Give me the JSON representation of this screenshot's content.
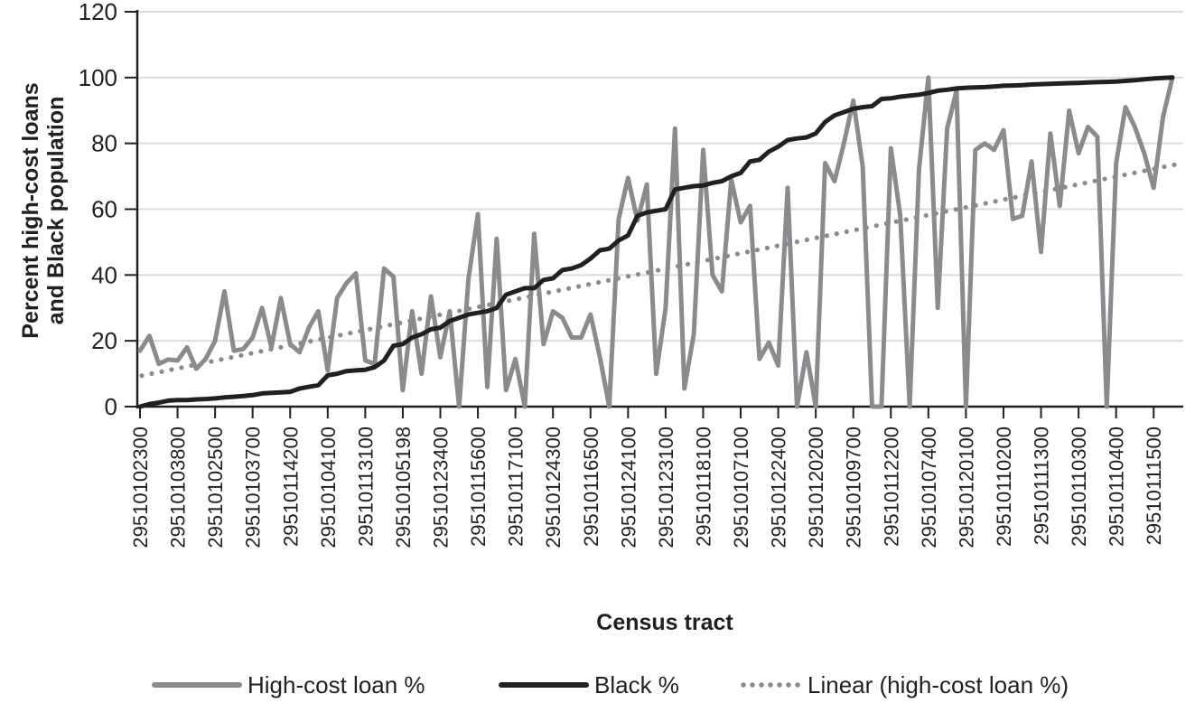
{
  "chart_data": {
    "type": "line",
    "title": "",
    "xlabel": "Census tract",
    "ylabel": "Percent high-cost loans and Black population",
    "ylim": [
      0,
      120
    ],
    "yticks": [
      0,
      20,
      40,
      60,
      80,
      100,
      120
    ],
    "grid": true,
    "legend_position": "bottom",
    "x_tick_labels": [
      "29510102300",
      "29510103800",
      "29510102500",
      "29510103700",
      "29510114200",
      "29510104100",
      "29510113100",
      "29510105198",
      "29510123400",
      "29510115600",
      "29510117100",
      "29510124300",
      "29510116500",
      "29510124100",
      "29510123100",
      "29510118100",
      "29510107100",
      "29510122400",
      "29510120200",
      "29510109700",
      "29510112200",
      "29510107400",
      "29510120100",
      "29510110200",
      "29510111300",
      "29510110300",
      "29510110400",
      "29510111500"
    ],
    "x_tick_every": 4,
    "series": [
      {
        "name": "High-cost loan %",
        "color": "#8a8b8e",
        "style": "solid",
        "values": [
          17,
          21.5,
          13,
          14.3,
          14,
          18,
          11.5,
          14.5,
          20,
          35,
          17,
          17.5,
          21,
          30,
          18,
          33,
          19,
          16.5,
          24,
          29,
          11,
          33,
          37.5,
          40.5,
          14,
          13,
          42,
          39.5,
          5,
          29,
          10,
          33.5,
          15,
          29,
          0,
          39,
          58.5,
          6,
          51,
          5,
          14.5,
          0,
          52.5,
          19,
          29,
          27,
          21,
          21,
          28,
          15,
          0,
          57,
          69.5,
          56.5,
          67.5,
          10,
          30,
          84.5,
          5.5,
          22,
          78,
          40,
          35,
          69,
          56,
          61,
          14.5,
          19.5,
          12.5,
          66.5,
          0,
          16.5,
          0,
          74,
          68.5,
          80,
          93,
          73,
          0,
          0,
          78.5,
          58,
          0,
          72,
          100,
          30,
          84.5,
          96,
          0,
          78,
          80,
          78,
          84,
          57,
          58,
          74.5,
          47,
          83,
          61,
          90,
          77,
          85,
          82,
          0,
          74,
          91,
          85,
          77,
          66.5,
          88,
          100
        ]
      },
      {
        "name": "Black %",
        "color": "#231f20",
        "style": "solid",
        "values": [
          0,
          0.8,
          1.2,
          1.8,
          2,
          2,
          2.2,
          2.3,
          2.5,
          2.8,
          3,
          3.2,
          3.5,
          4,
          4.2,
          4.3,
          4.5,
          5.5,
          6,
          6.5,
          9.5,
          10,
          10.8,
          11,
          11.2,
          12,
          14,
          18.5,
          19,
          21,
          22,
          23.5,
          24,
          26,
          27,
          28,
          28.5,
          29,
          30,
          34,
          35,
          36,
          36,
          38.5,
          39,
          41.5,
          42,
          43,
          45,
          47.5,
          48,
          50.5,
          52,
          58,
          59,
          59.5,
          60,
          66,
          66.5,
          67,
          67.2,
          68,
          68.5,
          70,
          71,
          74.5,
          75,
          77.5,
          79,
          81,
          81.5,
          81.8,
          83,
          86.5,
          88.5,
          89.5,
          90.5,
          91,
          91.3,
          93.5,
          93.7,
          94.2,
          94.5,
          94.8,
          95.3,
          96,
          96.3,
          96.7,
          96.9,
          97,
          97.1,
          97.3,
          97.5,
          97.6,
          97.7,
          97.9,
          98,
          98.1,
          98.2,
          98.3,
          98.4,
          98.5,
          98.6,
          98.7,
          98.8,
          99,
          99.2,
          99.5,
          99.7,
          99.9,
          100
        ]
      },
      {
        "name": "Linear (high-cost loan %)",
        "color": "#8a8b8e",
        "style": "dotted",
        "start": 9.4,
        "end": 73.5
      }
    ]
  },
  "axes": {
    "x_title": "Census tract",
    "y_title_line1": "Percent high-cost loans",
    "y_title_line2": "and Black population",
    "y_tick_labels": [
      "0",
      "20",
      "40",
      "60",
      "80",
      "100",
      "120"
    ]
  },
  "legend": {
    "items": [
      {
        "label": "High-cost loan %",
        "color": "#8a8b8e",
        "style": "solid"
      },
      {
        "label": "Black %",
        "color": "#231f20",
        "style": "solid"
      },
      {
        "label": "Linear (high-cost loan %)",
        "color": "#8a8b8e",
        "style": "dotted"
      }
    ]
  }
}
